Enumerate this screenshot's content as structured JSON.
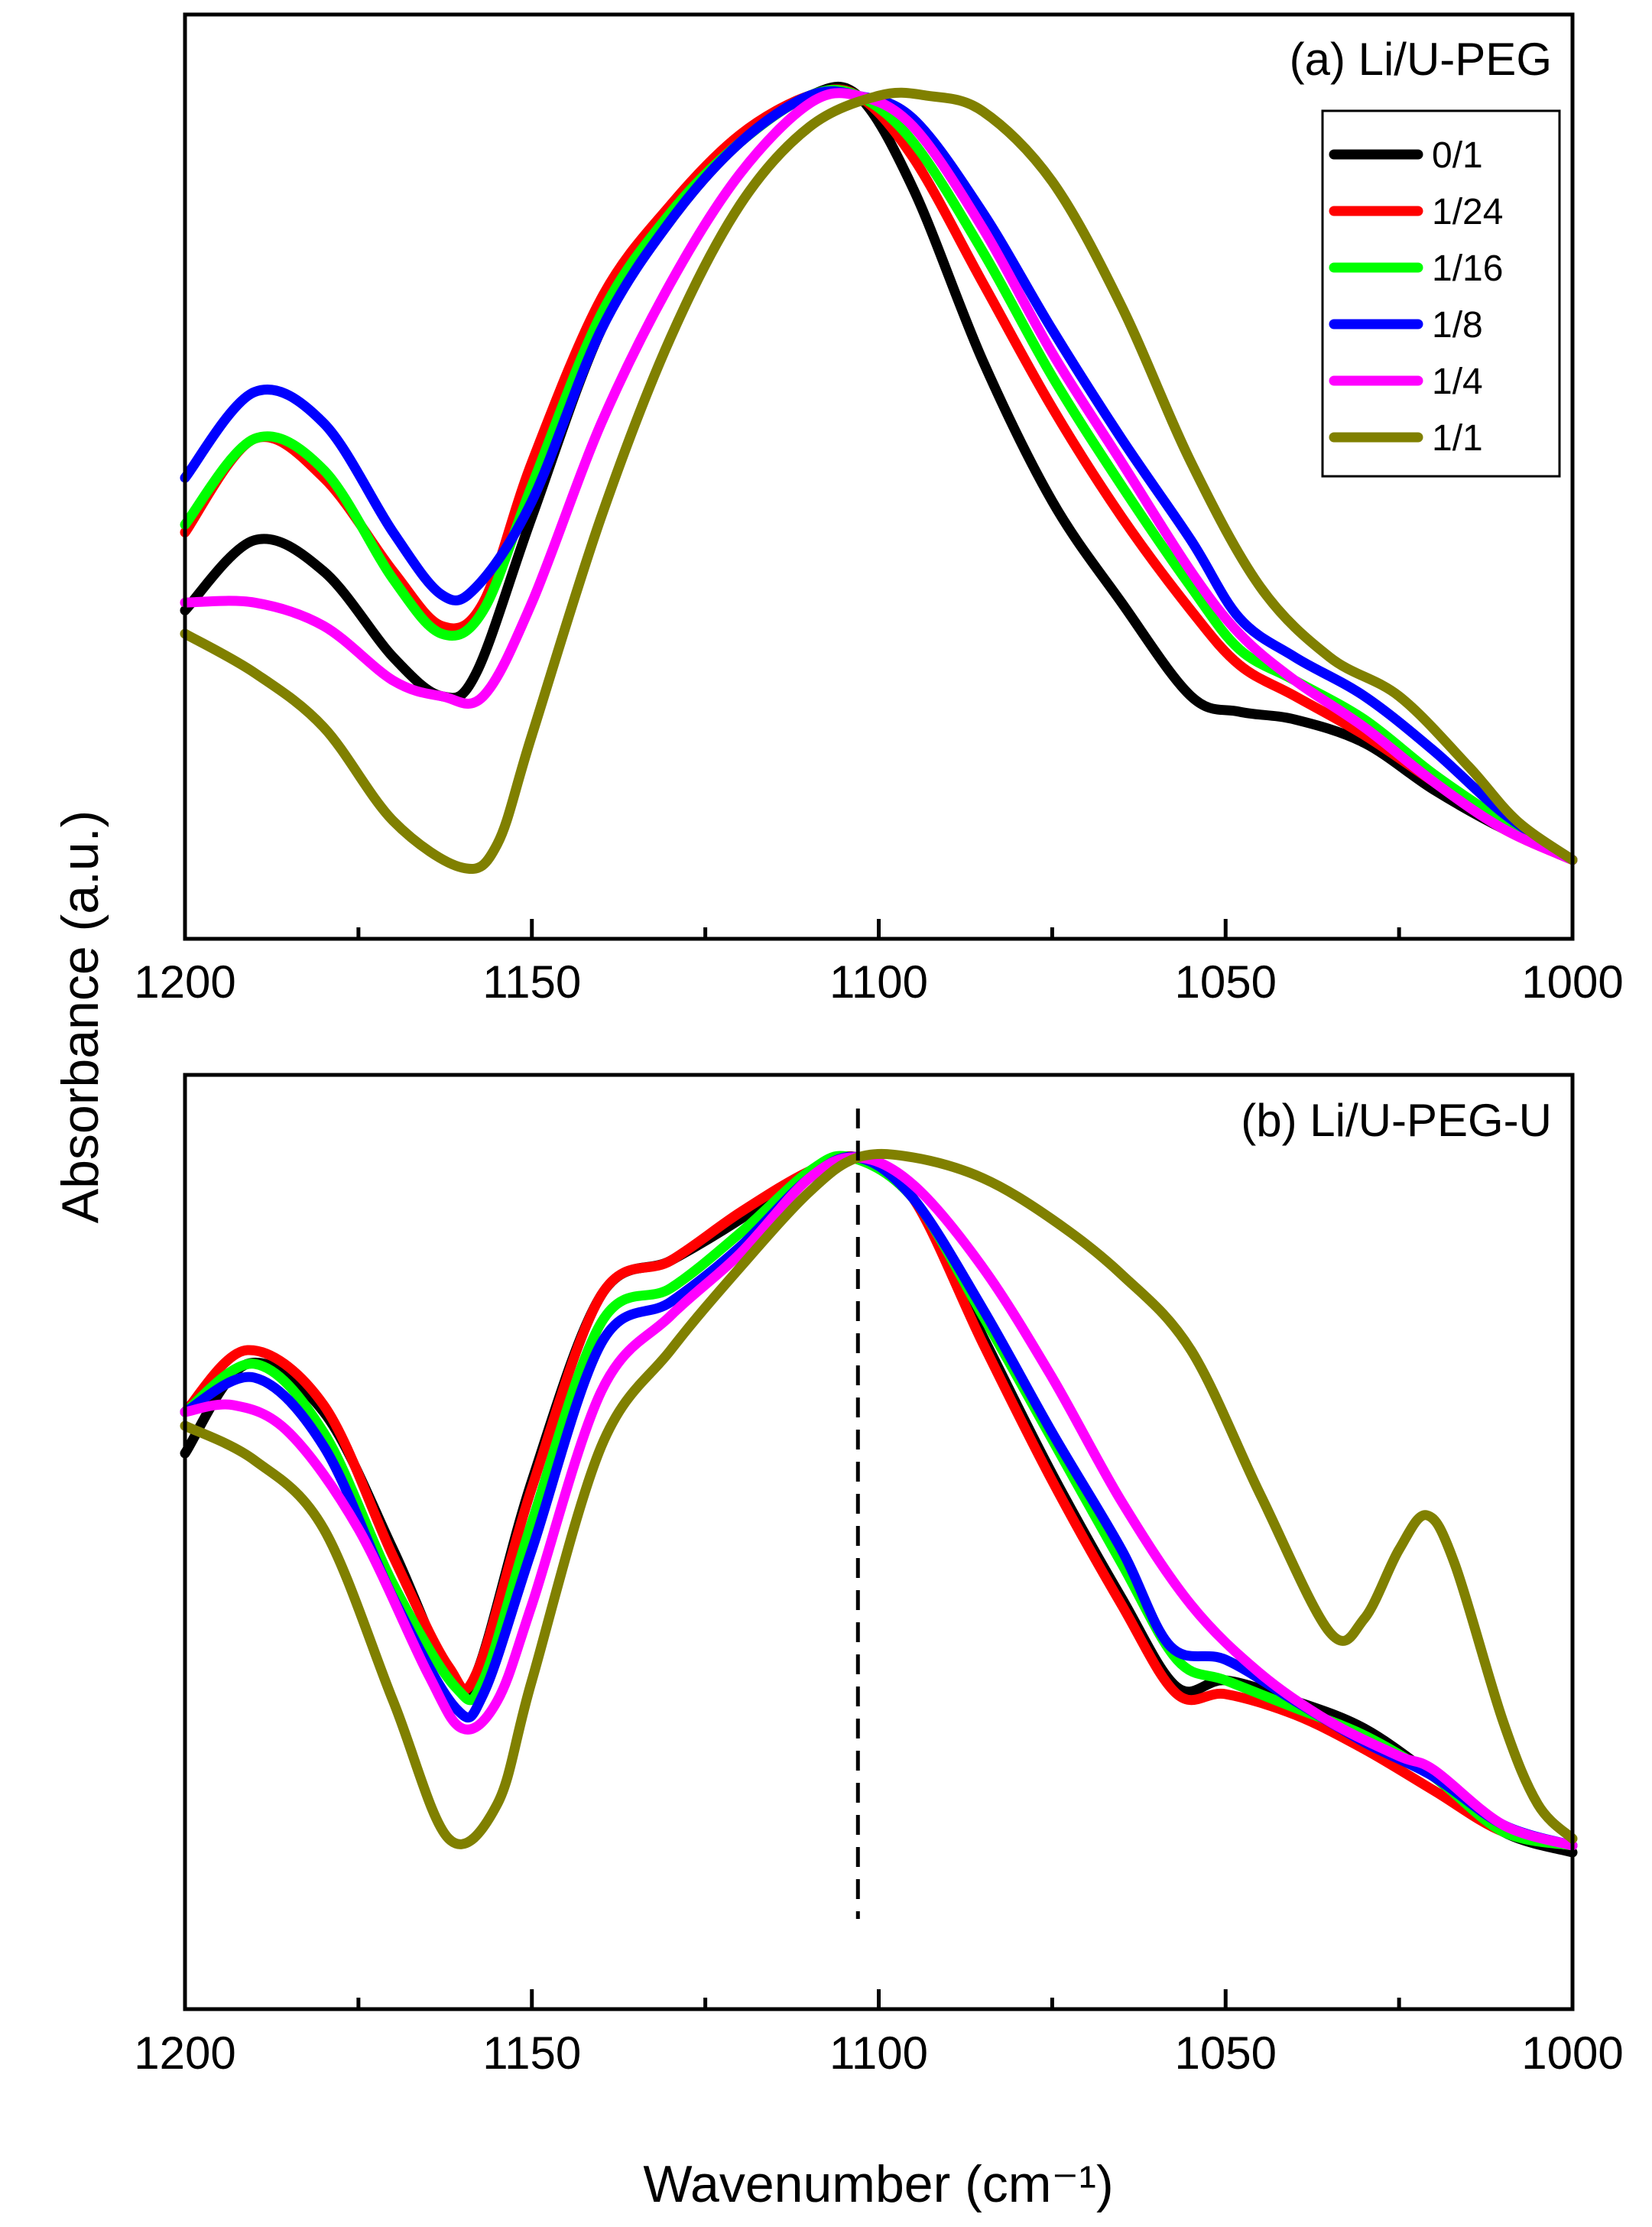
{
  "chart_data": [
    {
      "type": "line",
      "title": "(a) Li/U-PEG",
      "xlabel": "Wavenumber (cm⁻¹)",
      "ylabel": "Absorbance (a.u.)",
      "x_reversed": true,
      "xlim": [
        1200,
        1000
      ],
      "ylim": [
        0,
        1
      ],
      "x_ticks": [
        1200,
        1150,
        1100,
        1050,
        1000
      ],
      "x_tick_labels": [
        "1200",
        "1150",
        "1100",
        "1050",
        "1000"
      ],
      "x_minor_ticks": [
        1175,
        1125,
        1075,
        1025
      ],
      "grid": false,
      "legend_position": "top-right",
      "legend_labels": [
        "0/1",
        "1/24",
        "1/16",
        "1/8",
        "1/4",
        "1/1"
      ],
      "series": [
        {
          "name": "0/1",
          "color": "#000000",
          "x": [
            1200,
            1190,
            1180,
            1170,
            1163,
            1158,
            1150,
            1140,
            1130,
            1120,
            1110,
            1103,
            1095,
            1085,
            1075,
            1065,
            1055,
            1048,
            1040,
            1030,
            1020,
            1010,
            1000
          ],
          "y": [
            0.33,
            0.42,
            0.38,
            0.27,
            0.22,
            0.25,
            0.45,
            0.69,
            0.83,
            0.93,
            0.99,
            0.99,
            0.87,
            0.65,
            0.47,
            0.34,
            0.22,
            0.2,
            0.19,
            0.16,
            0.1,
            0.05,
            0.01
          ]
        },
        {
          "name": "1/24",
          "color": "#ff0000",
          "x": [
            1200,
            1190,
            1180,
            1170,
            1163,
            1157,
            1150,
            1140,
            1130,
            1120,
            1110,
            1103,
            1095,
            1085,
            1075,
            1065,
            1055,
            1048,
            1040,
            1030,
            1020,
            1010,
            1000
          ],
          "y": [
            0.43,
            0.55,
            0.5,
            0.38,
            0.31,
            0.34,
            0.52,
            0.73,
            0.85,
            0.94,
            0.99,
            0.99,
            0.91,
            0.75,
            0.59,
            0.45,
            0.33,
            0.26,
            0.22,
            0.17,
            0.11,
            0.05,
            0.01
          ]
        },
        {
          "name": "1/16",
          "color": "#00ff00",
          "x": [
            1200,
            1190,
            1180,
            1170,
            1163,
            1157,
            1150,
            1140,
            1130,
            1120,
            1110,
            1103,
            1095,
            1085,
            1075,
            1065,
            1055,
            1048,
            1040,
            1030,
            1020,
            1010,
            1000
          ],
          "y": [
            0.44,
            0.55,
            0.51,
            0.37,
            0.3,
            0.33,
            0.49,
            0.71,
            0.84,
            0.93,
            0.99,
            0.99,
            0.93,
            0.79,
            0.63,
            0.49,
            0.36,
            0.28,
            0.24,
            0.19,
            0.12,
            0.06,
            0.01
          ]
        },
        {
          "name": "1/8",
          "color": "#0000ff",
          "x": [
            1200,
            1190,
            1180,
            1170,
            1163,
            1158,
            1150,
            1140,
            1130,
            1120,
            1110,
            1103,
            1095,
            1085,
            1075,
            1065,
            1055,
            1048,
            1040,
            1030,
            1020,
            1010,
            1000
          ],
          "y": [
            0.5,
            0.61,
            0.57,
            0.43,
            0.35,
            0.36,
            0.47,
            0.69,
            0.83,
            0.93,
            0.99,
            0.99,
            0.96,
            0.84,
            0.69,
            0.55,
            0.42,
            0.32,
            0.27,
            0.22,
            0.15,
            0.07,
            0.01
          ]
        },
        {
          "name": "1/4",
          "color": "#ff00ff",
          "x": [
            1200,
            1190,
            1180,
            1170,
            1163,
            1157,
            1150,
            1140,
            1130,
            1120,
            1110,
            1103,
            1095,
            1085,
            1075,
            1065,
            1055,
            1048,
            1040,
            1030,
            1020,
            1010,
            1000
          ],
          "y": [
            0.34,
            0.34,
            0.31,
            0.24,
            0.22,
            0.22,
            0.34,
            0.57,
            0.75,
            0.89,
            0.98,
            0.99,
            0.95,
            0.82,
            0.66,
            0.52,
            0.38,
            0.3,
            0.24,
            0.18,
            0.11,
            0.05,
            0.01
          ]
        },
        {
          "name": "1/1",
          "color": "#808000",
          "x": [
            1200,
            1190,
            1180,
            1170,
            1160,
            1155,
            1150,
            1140,
            1130,
            1120,
            1110,
            1100,
            1093,
            1085,
            1075,
            1065,
            1055,
            1045,
            1035,
            1025,
            1015,
            1008,
            1000
          ],
          "y": [
            0.3,
            0.25,
            0.18,
            0.06,
            0.0,
            0.03,
            0.17,
            0.45,
            0.68,
            0.85,
            0.95,
            0.99,
            0.99,
            0.97,
            0.88,
            0.72,
            0.52,
            0.36,
            0.27,
            0.22,
            0.13,
            0.06,
            0.01
          ]
        }
      ]
    },
    {
      "type": "line",
      "title": "(b) Li/U-PEG-U",
      "xlabel": "Wavenumber (cm⁻¹)",
      "ylabel": "Absorbance (a.u.)",
      "x_reversed": true,
      "xlim": [
        1200,
        1000
      ],
      "ylim": [
        0,
        1
      ],
      "x_ticks": [
        1200,
        1150,
        1100,
        1050,
        1000
      ],
      "x_tick_labels": [
        "1200",
        "1150",
        "1100",
        "1050",
        "1000"
      ],
      "x_minor_ticks": [
        1175,
        1125,
        1075,
        1025
      ],
      "grid": false,
      "reference_line_x": 1103,
      "series": [
        {
          "name": "0/1",
          "color": "#000000",
          "x": [
            1200,
            1191,
            1180,
            1170,
            1162,
            1158,
            1150,
            1140,
            1130,
            1120,
            1110,
            1103,
            1095,
            1085,
            1075,
            1065,
            1057,
            1050,
            1040,
            1030,
            1020,
            1010,
            1000
          ],
          "y": [
            0.56,
            0.69,
            0.62,
            0.42,
            0.24,
            0.24,
            0.52,
            0.79,
            0.84,
            0.9,
            0.97,
            0.99,
            0.93,
            0.73,
            0.53,
            0.35,
            0.22,
            0.23,
            0.2,
            0.16,
            0.09,
            0.01,
            -0.02
          ]
        },
        {
          "name": "1/24",
          "color": "#ff0000",
          "x": [
            1200,
            1191,
            1180,
            1170,
            1162,
            1158,
            1150,
            1140,
            1130,
            1120,
            1110,
            1103,
            1095,
            1085,
            1075,
            1065,
            1057,
            1050,
            1040,
            1030,
            1020,
            1010,
            1000
          ],
          "y": [
            0.62,
            0.71,
            0.63,
            0.41,
            0.25,
            0.24,
            0.51,
            0.79,
            0.84,
            0.91,
            0.97,
            0.99,
            0.93,
            0.72,
            0.52,
            0.34,
            0.21,
            0.21,
            0.18,
            0.13,
            0.07,
            0.01,
            -0.01
          ]
        },
        {
          "name": "1/16",
          "color": "#00ff00",
          "x": [
            1200,
            1190,
            1180,
            1170,
            1161,
            1157,
            1150,
            1140,
            1130,
            1120,
            1110,
            1104,
            1095,
            1085,
            1075,
            1065,
            1057,
            1050,
            1040,
            1030,
            1020,
            1010,
            1000
          ],
          "y": [
            0.62,
            0.69,
            0.59,
            0.37,
            0.22,
            0.23,
            0.46,
            0.75,
            0.8,
            0.88,
            0.97,
            0.99,
            0.93,
            0.76,
            0.58,
            0.4,
            0.26,
            0.23,
            0.19,
            0.15,
            0.09,
            0.01,
            -0.01
          ]
        },
        {
          "name": "1/8",
          "color": "#0000ff",
          "x": [
            1200,
            1190,
            1180,
            1170,
            1161,
            1157,
            1150,
            1140,
            1130,
            1120,
            1110,
            1103,
            1095,
            1085,
            1075,
            1065,
            1058,
            1050,
            1040,
            1030,
            1020,
            1010,
            1000
          ],
          "y": [
            0.62,
            0.67,
            0.57,
            0.35,
            0.19,
            0.21,
            0.42,
            0.72,
            0.78,
            0.86,
            0.96,
            0.99,
            0.93,
            0.77,
            0.59,
            0.42,
            0.28,
            0.26,
            0.2,
            0.14,
            0.09,
            0.02,
            -0.01
          ]
        },
        {
          "name": "1/4",
          "color": "#ff00ff",
          "x": [
            1200,
            1193,
            1185,
            1175,
            1165,
            1160,
            1155,
            1150,
            1140,
            1130,
            1120,
            1110,
            1103,
            1095,
            1085,
            1075,
            1065,
            1055,
            1045,
            1035,
            1025,
            1020,
            1010,
            1000
          ],
          "y": [
            0.62,
            0.63,
            0.59,
            0.45,
            0.24,
            0.16,
            0.2,
            0.34,
            0.65,
            0.76,
            0.85,
            0.96,
            0.99,
            0.95,
            0.83,
            0.67,
            0.49,
            0.34,
            0.24,
            0.17,
            0.12,
            0.1,
            0.02,
            -0.01
          ]
        },
        {
          "name": "1/1",
          "color": "#808000",
          "x": [
            1200,
            1190,
            1180,
            1170,
            1162,
            1155,
            1150,
            1140,
            1130,
            1120,
            1110,
            1103,
            1095,
            1085,
            1075,
            1065,
            1055,
            1045,
            1035,
            1030,
            1025,
            1021,
            1017,
            1010,
            1005,
            1000
          ],
          "y": [
            0.6,
            0.55,
            0.45,
            0.2,
            0.0,
            0.05,
            0.23,
            0.57,
            0.71,
            0.83,
            0.94,
            0.99,
            0.99,
            0.96,
            0.9,
            0.82,
            0.71,
            0.5,
            0.3,
            0.32,
            0.42,
            0.47,
            0.4,
            0.17,
            0.05,
            0.0
          ]
        }
      ]
    }
  ]
}
